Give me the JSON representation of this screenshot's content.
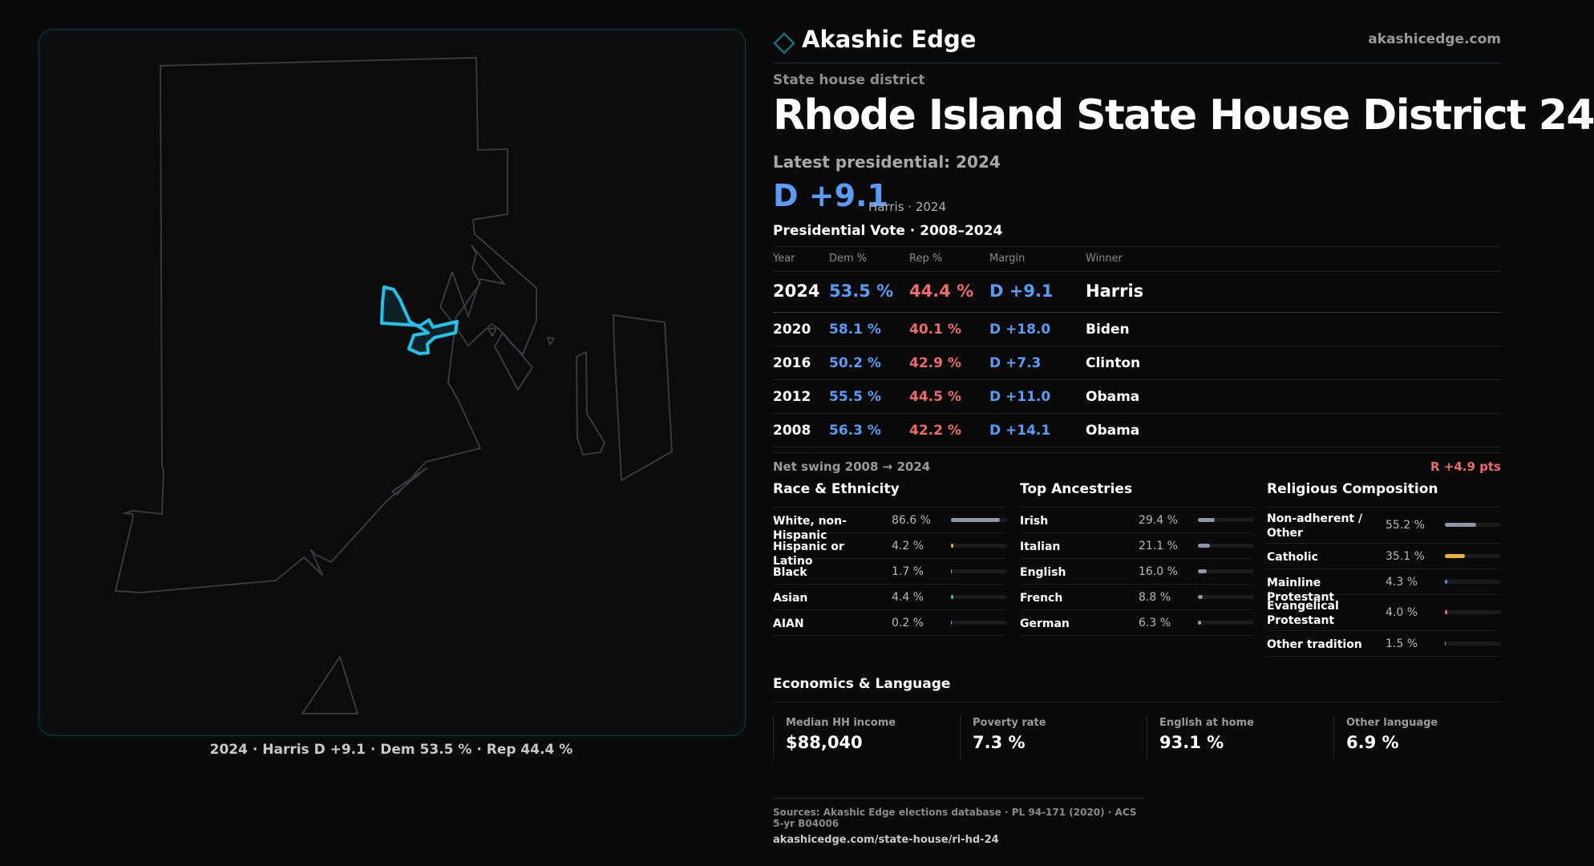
{
  "map": {
    "caption": "2024 · Harris D +9.1 · Dem 53.5 % · Rep 44.4 %",
    "highlight_color": "#22c3e6"
  },
  "brand": {
    "name": "Akashic Edge",
    "url": "akashicedge.com"
  },
  "header": {
    "kicker": "State house district",
    "title": "Rhode Island State House District 24",
    "latest_label": "Latest presidential: 2024",
    "margin": "D +9.1",
    "margin_sub": "Harris · 2024"
  },
  "presidential": {
    "title": "Presidential Vote · 2008–2024",
    "columns": [
      "Year",
      "Dem %",
      "Rep %",
      "Margin",
      "Winner"
    ],
    "rows": [
      {
        "year": "2024",
        "dem": "53.5 %",
        "rep": "44.4 %",
        "margin": "D +9.1",
        "winner": "Harris"
      },
      {
        "year": "2020",
        "dem": "58.1 %",
        "rep": "40.1 %",
        "margin": "D +18.0",
        "winner": "Biden"
      },
      {
        "year": "2016",
        "dem": "50.2 %",
        "rep": "42.9 %",
        "margin": "D +7.3",
        "winner": "Clinton"
      },
      {
        "year": "2012",
        "dem": "55.5 %",
        "rep": "44.5 %",
        "margin": "D +11.0",
        "winner": "Obama"
      },
      {
        "year": "2008",
        "dem": "56.3 %",
        "rep": "42.2 %",
        "margin": "D +14.1",
        "winner": "Obama"
      }
    ],
    "swing_label": "Net swing 2008 → 2024",
    "swing_value": "R +4.9 pts"
  },
  "race": {
    "title": "Race & Ethnicity",
    "rows": [
      {
        "label": "White, non-Hispanic",
        "value": "86.6 %",
        "pct": 86.6,
        "color": "#8d97a8"
      },
      {
        "label": "Hispanic or Latino",
        "value": "4.2 %",
        "pct": 4.2,
        "color": "#e8a93a"
      },
      {
        "label": "Black",
        "value": "1.7 %",
        "pct": 1.7,
        "color": "#8d97a8"
      },
      {
        "label": "Asian",
        "value": "4.4 %",
        "pct": 4.4,
        "color": "#3fbf8a"
      },
      {
        "label": "AIAN",
        "value": "0.2 %",
        "pct": 0.2,
        "color": "#8d97a8"
      }
    ]
  },
  "ancestry": {
    "title": "Top Ancestries",
    "rows": [
      {
        "label": "Irish",
        "value": "29.4 %",
        "pct": 29.4,
        "color": "#8d97a8"
      },
      {
        "label": "Italian",
        "value": "21.1 %",
        "pct": 21.1,
        "color": "#8d97a8"
      },
      {
        "label": "English",
        "value": "16.0 %",
        "pct": 16.0,
        "color": "#8d97a8"
      },
      {
        "label": "French",
        "value": "8.8 %",
        "pct": 8.8,
        "color": "#8d97a8"
      },
      {
        "label": "German",
        "value": "6.3 %",
        "pct": 6.3,
        "color": "#8d97a8"
      }
    ]
  },
  "religion": {
    "title": "Religious Composition",
    "rows": [
      {
        "label": "Non-adherent / Other",
        "value": "55.2 %",
        "pct": 55.2,
        "color": "#8d97a8"
      },
      {
        "label": "Catholic",
        "value": "35.1 %",
        "pct": 35.1,
        "color": "#e8b23a"
      },
      {
        "label": "Mainline Protestant",
        "value": "4.3 %",
        "pct": 4.3,
        "color": "#4a8ff0"
      },
      {
        "label": "Evangelical Protestant",
        "value": "4.0 %",
        "pct": 4.0,
        "color": "#e86a6a"
      },
      {
        "label": "Other tradition",
        "value": "1.5 %",
        "pct": 1.5,
        "color": "#8d97a8"
      }
    ]
  },
  "economics": {
    "title": "Economics & Language",
    "cards": [
      {
        "label": "Median HH income",
        "value": "$88,040"
      },
      {
        "label": "Poverty rate",
        "value": "7.3 %"
      },
      {
        "label": "English at home",
        "value": "93.1 %"
      },
      {
        "label": "Other language",
        "value": "6.9 %"
      }
    ]
  },
  "sources": {
    "line": "Sources: Akashic Edge elections database · PL 94-171 (2020) · ACS 5-yr B04006",
    "url": "akashicedge.com/state-house/ri-hd-24"
  }
}
